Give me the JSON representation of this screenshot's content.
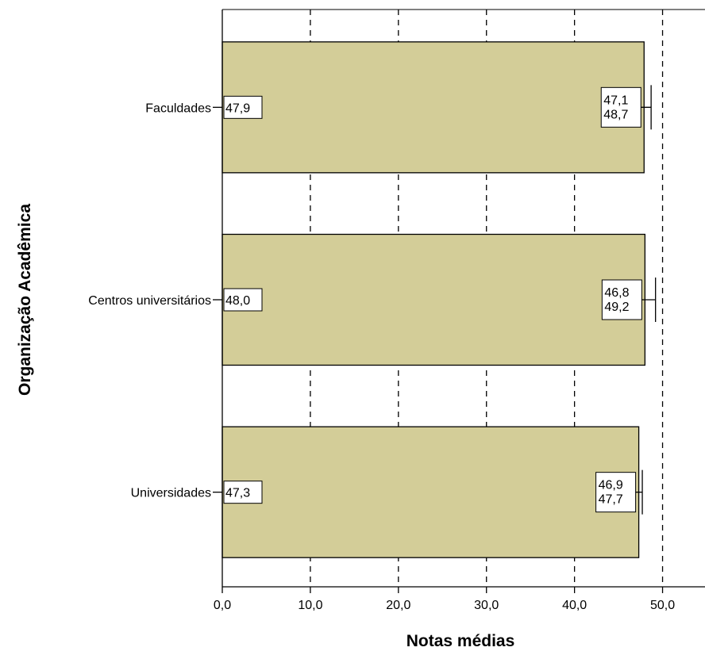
{
  "chart_data": {
    "type": "bar",
    "orientation": "horizontal",
    "xlabel": "Notas médias",
    "ylabel": "Organização Acadêmica",
    "xlim": [
      0,
      55
    ],
    "x_ticks": [
      0,
      10,
      20,
      30,
      40,
      50
    ],
    "x_tick_labels": [
      "0,0",
      "10,0",
      "20,0",
      "30,0",
      "40,0",
      "50,0"
    ],
    "grid": "vertical dashed",
    "bar_color": "#d3cd98",
    "categories": [
      "Faculdades",
      "Centros universitários",
      "Universidades"
    ],
    "values": [
      47.9,
      48.0,
      47.3
    ],
    "value_labels": [
      "47,9",
      "48,0",
      "47,3"
    ],
    "ci_lower": [
      47.1,
      46.8,
      46.9
    ],
    "ci_upper": [
      48.7,
      49.2,
      47.7
    ],
    "ci_lower_labels": [
      "47,1",
      "46,8",
      "46,9"
    ],
    "ci_upper_labels": [
      "48,7",
      "49,2",
      "47,7"
    ]
  }
}
